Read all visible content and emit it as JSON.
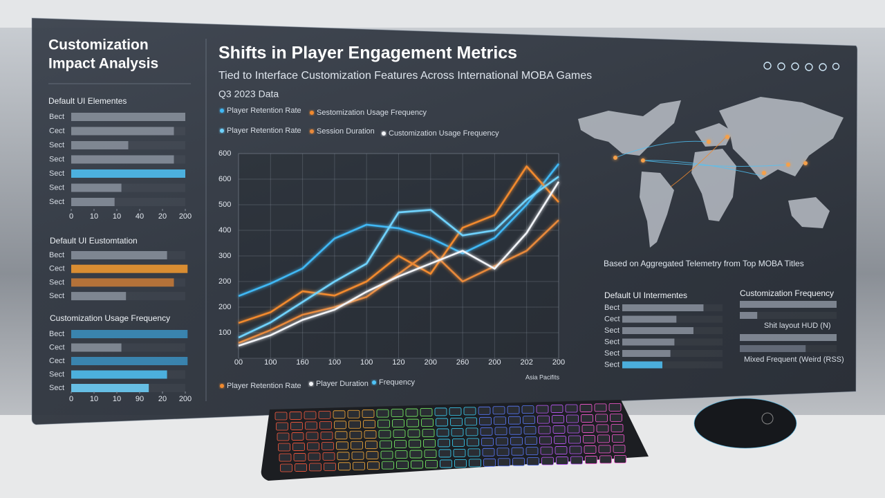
{
  "header": {
    "panel_title": [
      "Customization",
      "Impact Analysis"
    ],
    "title": "Shifts in Player Engagement Metrics",
    "subtitle": "Tied to Interface Customization Features Across International MOBA Games",
    "period": "Q3 2023 Data",
    "map_caption": "Based on Aggregated Telemetry from Top MOBA Titles",
    "region_label": "Asia Pacifits"
  },
  "chart_data": [
    {
      "type": "barh",
      "title": "Default UI Elementes",
      "categories": [
        "Bect",
        "Cect",
        "Sect",
        "Sect",
        "Sect",
        "Sect",
        "Sect"
      ],
      "values": [
        5.0,
        4.5,
        2.5,
        4.5,
        5.0,
        2.2,
        1.9
      ],
      "colors": [
        "#8a929e",
        "#8a929e",
        "#8a929e",
        "#8a929e",
        "#4fc3f7",
        "#8a929e",
        "#8a929e"
      ],
      "xlim": [
        0,
        5
      ],
      "xticks": [
        0,
        {
          "value": 1,
          "label": "10"
        },
        {
          "value": 2,
          "label": "10"
        },
        {
          "value": 3,
          "label": "40"
        },
        {
          "value": 4,
          "label": "20"
        },
        {
          "value": 5,
          "label": "200"
        }
      ]
    },
    {
      "type": "barh",
      "title": "Default UI Eustomtation",
      "categories": [
        "Bect",
        "Cect",
        "Sect",
        "Sect"
      ],
      "values": [
        4.2,
        5.1,
        4.5,
        2.4
      ],
      "colors": [
        "#8a929e",
        "#f59a2e",
        "#c97a36",
        "#8a929e"
      ],
      "xlim": [
        0,
        5
      ]
    },
    {
      "type": "barh",
      "title": "Customization Usage Frequency",
      "categories": [
        "Bect",
        "Cect",
        "Cect",
        "Sect",
        "Sect"
      ],
      "values": [
        5.1,
        2.2,
        5.1,
        4.2,
        3.4
      ],
      "colors": [
        "#3a8fc0",
        "#8a929e",
        "#3a8fc0",
        "#4fc3f7",
        "#6fd3ff"
      ],
      "xlim": [
        0,
        5
      ],
      "xticks": [
        0,
        {
          "value": 1,
          "label": "10"
        },
        {
          "value": 2,
          "label": "10"
        },
        {
          "value": 3,
          "label": "90"
        },
        {
          "value": 4,
          "label": "20"
        },
        {
          "value": 5,
          "label": "200"
        }
      ]
    },
    {
      "type": "line",
      "x": [
        0,
        1,
        2,
        3,
        4,
        5,
        6,
        7,
        8,
        9,
        10
      ],
      "xlim": [
        0,
        10
      ],
      "xticks": [
        {
          "value": 0,
          "label": "00"
        },
        {
          "value": 1,
          "label": "100"
        },
        {
          "value": 2,
          "label": "160"
        },
        {
          "value": 3,
          "label": "100"
        },
        {
          "value": 4,
          "label": "100"
        },
        {
          "value": 5,
          "label": "120"
        },
        {
          "value": 6,
          "label": "200"
        },
        {
          "value": 7,
          "label": "260"
        },
        {
          "value": 8,
          "label": "200"
        },
        {
          "value": 9,
          "label": "202"
        },
        {
          "value": 10,
          "label": "200"
        }
      ],
      "ylim": [
        0,
        800
      ],
      "yticks": [
        100,
        {
          "value": 200,
          "label": "200"
        },
        {
          "value": 300,
          "label": "200"
        },
        {
          "value": 400,
          "label": "300"
        },
        {
          "value": 500,
          "label": "400"
        },
        {
          "value": 600,
          "label": "500"
        },
        {
          "value": 700,
          "label": "600"
        },
        {
          "value": 800,
          "label": "600"
        }
      ],
      "grid": true,
      "series": [
        {
          "name": "Player Retention Rate",
          "color": "#3fb8f5",
          "values": [
            243,
            292,
            351,
            468,
            522,
            508,
            470,
            410,
            470,
            600,
            760
          ]
        },
        {
          "name": "Sestomization Usage Frequency",
          "color": "#f28a2e",
          "values": [
            138,
            180,
            262,
            245,
            300,
            400,
            330,
            510,
            560,
            750,
            610
          ]
        },
        {
          "name": "Player Retention Rate",
          "color": "#6fd3ff",
          "values": [
            81,
            140,
            220,
            300,
            370,
            570,
            580,
            480,
            500,
            620,
            710
          ]
        },
        {
          "name": "Session Duration",
          "color": "#e8893a",
          "values": [
            60,
            110,
            170,
            200,
            240,
            330,
            420,
            300,
            360,
            420,
            540
          ]
        },
        {
          "name": "Customization Usage Frequency",
          "color": "#f2f4f8",
          "values": [
            49,
            90,
            150,
            190,
            260,
            320,
            370,
            420,
            350,
            490,
            690
          ]
        }
      ],
      "bottom_legend": [
        {
          "name": "Player Retention Rate",
          "color": "#f28a2e"
        },
        {
          "name": "Player Duration",
          "color": "#f2f4f8"
        },
        {
          "name": "Frequency",
          "color": "#4fc3f7"
        }
      ]
    },
    {
      "type": "barh",
      "title": "Default UI Intermentes",
      "categories": [
        "Bect",
        "Cect",
        "Sect",
        "Sect",
        "Sect",
        "Sect"
      ],
      "values": [
        81,
        54,
        71,
        52,
        48,
        40
      ],
      "colors": [
        "#8a929e",
        "#8a929e",
        "#8a929e",
        "#8a929e",
        "#8a929e",
        "#4fc3f7"
      ],
      "xlim": [
        0,
        100
      ]
    },
    {
      "type": "barh",
      "title": "Customization Frequency",
      "values": [
        100,
        18,
        100,
        68
      ],
      "colors": [
        "#8a929e",
        "#8a929e",
        "#8a929e",
        "#6a7280"
      ],
      "xlim": [
        0,
        100
      ],
      "notes": [
        "Shit layout HUD (N)",
        "Mixed Frequent (Weird (RSS)"
      ]
    }
  ]
}
